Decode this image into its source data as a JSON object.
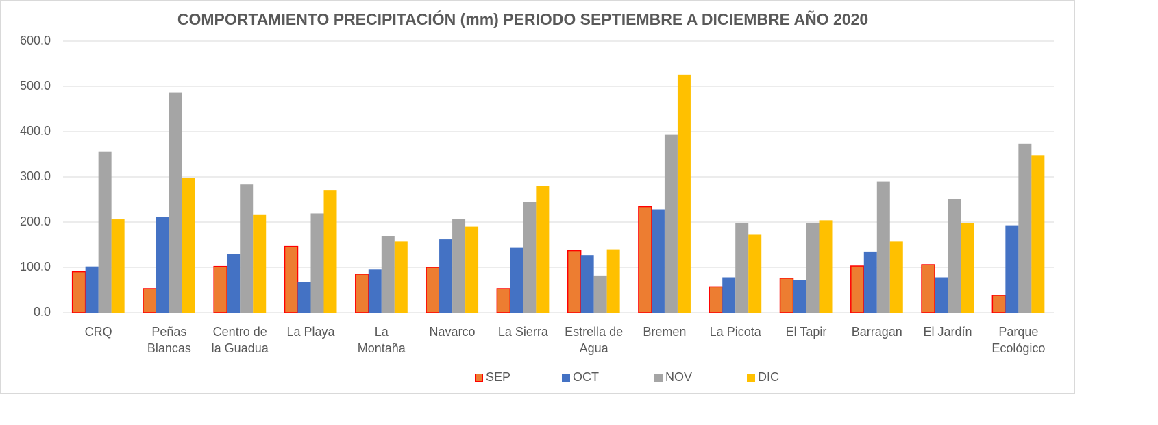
{
  "chart_data": {
    "type": "bar",
    "title": "COMPORTAMIENTO PRECIPITACIÓN (mm) PERIODO SEPTIEMBRE A DICIEMBRE  AÑO 2020",
    "categories": [
      "CRQ",
      "Peñas Blancas",
      "Centro de la Guadua",
      "La Playa",
      "La Montaña",
      "Navarco",
      "La Sierra",
      "Estrella de Agua",
      "Bremen",
      "La Picota",
      "El Tapir",
      "Barragan",
      "El Jardín",
      "Parque Ecológico"
    ],
    "series": [
      {
        "name": "SEP",
        "color": "#ed7d31",
        "edge": "#ff0000",
        "values": [
          90,
          53,
          102,
          146,
          85,
          100,
          53,
          137,
          234,
          57,
          76,
          103,
          106,
          38
        ]
      },
      {
        "name": "OCT",
        "color": "#4472c4",
        "values": [
          102,
          211,
          130,
          68,
          95,
          162,
          143,
          127,
          228,
          78,
          72,
          135,
          78,
          193
        ]
      },
      {
        "name": "NOV",
        "color": "#a5a5a5",
        "values": [
          355,
          487,
          283,
          219,
          169,
          207,
          244,
          82,
          393,
          198,
          198,
          290,
          250,
          373
        ]
      },
      {
        "name": "DIC",
        "color": "#ffc000",
        "values": [
          206,
          297,
          217,
          271,
          157,
          190,
          279,
          140,
          526,
          172,
          204,
          157,
          197,
          348
        ]
      }
    ],
    "ylim": [
      0,
      600
    ],
    "yticks": [
      {
        "value": 0,
        "label": "0.0"
      },
      {
        "value": 100,
        "label": "100.0"
      },
      {
        "value": 200,
        "label": "200.0"
      },
      {
        "value": 300,
        "label": "300.0"
      },
      {
        "value": 400,
        "label": "400.0"
      },
      {
        "value": 500,
        "label": "500.0"
      },
      {
        "value": 600,
        "label": "600.0"
      }
    ],
    "grid": true,
    "legend": "bottom"
  }
}
